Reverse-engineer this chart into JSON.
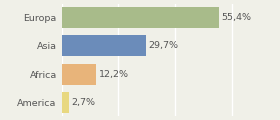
{
  "categories": [
    "Europa",
    "Asia",
    "Africa",
    "America"
  ],
  "values": [
    55.4,
    29.7,
    12.2,
    2.7
  ],
  "labels": [
    "55,4%",
    "29,7%",
    "12,2%",
    "2,7%"
  ],
  "bar_colors": [
    "#a8bb8a",
    "#6b8cba",
    "#e8b47a",
    "#e8d880"
  ],
  "background_color": "#f0f0e8",
  "xlim": [
    0,
    72
  ],
  "bar_height": 0.75,
  "label_fontsize": 6.8,
  "tick_fontsize": 6.8,
  "text_color": "#555555",
  "grid_color": "#ffffff",
  "grid_linewidth": 1.0
}
